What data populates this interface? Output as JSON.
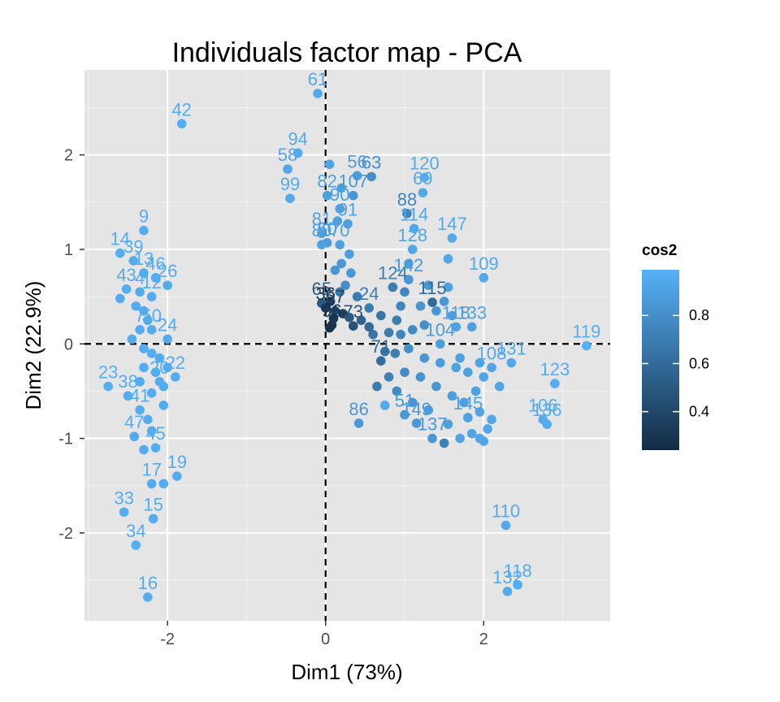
{
  "chart_data": {
    "type": "scatter",
    "title": "Individuals factor map - PCA",
    "xlabel": "Dim1 (73%)",
    "ylabel": "Dim2 (22.9%)",
    "xlim": [
      -3.05,
      3.6
    ],
    "ylim": [
      -2.93,
      2.9
    ],
    "xticks": [
      {
        "v": -2,
        "label": "-2"
      },
      {
        "v": 0,
        "label": "0"
      },
      {
        "v": 2,
        "label": "2"
      }
    ],
    "yticks": [
      {
        "v": -2,
        "label": "-2"
      },
      {
        "v": -1,
        "label": "-1"
      },
      {
        "v": 0,
        "label": "0"
      },
      {
        "v": 1,
        "label": "1"
      },
      {
        "v": 2,
        "label": "2"
      }
    ],
    "grid": true,
    "reference_lines": {
      "x": 0,
      "y": 0,
      "style": "dashed"
    },
    "color_scale": {
      "name": "cos2",
      "min": 0.24,
      "max": 0.99,
      "low_color": "#132b43",
      "high_color": "#56b1f7",
      "ticks": [
        {
          "v": 0.4,
          "label": "0.4"
        },
        {
          "v": 0.6,
          "label": "0.6"
        },
        {
          "v": 0.8,
          "label": "0.8"
        }
      ]
    },
    "legend": "right",
    "points": [
      {
        "label": "61",
        "x": -0.1,
        "y": 2.65,
        "cos2": 0.95
      },
      {
        "label": "42",
        "x": -1.82,
        "y": 2.33,
        "cos2": 0.97
      },
      {
        "label": "94",
        "x": -0.35,
        "y": 2.02,
        "cos2": 0.96
      },
      {
        "label": "58",
        "x": -0.48,
        "y": 1.85,
        "cos2": 0.93
      },
      {
        "label": "99",
        "x": -0.45,
        "y": 1.54,
        "cos2": 0.95
      },
      {
        "label": "82",
        "x": 0.02,
        "y": 1.57,
        "cos2": 0.9
      },
      {
        "label": "107",
        "x": 0.35,
        "y": 1.57,
        "cos2": 0.85
      },
      {
        "label": "56",
        "x": 0.4,
        "y": 1.78,
        "cos2": 0.88
      },
      {
        "label": "63",
        "x": 0.58,
        "y": 1.77,
        "cos2": 0.8
      },
      {
        "label": "120",
        "x": 1.25,
        "y": 1.76,
        "cos2": 0.96
      },
      {
        "label": "69",
        "x": 1.23,
        "y": 1.6,
        "cos2": 0.95
      },
      {
        "label": "88",
        "x": 1.03,
        "y": 1.38,
        "cos2": 0.75
      },
      {
        "label": "114",
        "x": 1.12,
        "y": 1.22,
        "cos2": 0.93
      },
      {
        "label": "90",
        "x": 0.18,
        "y": 1.43,
        "cos2": 0.9
      },
      {
        "label": "91",
        "x": 0.28,
        "y": 1.27,
        "cos2": 0.9
      },
      {
        "label": "81",
        "x": -0.05,
        "y": 1.17,
        "cos2": 0.9
      },
      {
        "label": "60",
        "x": 0.02,
        "y": 1.07,
        "cos2": 0.88
      },
      {
        "label": "70",
        "x": 0.18,
        "y": 1.05,
        "cos2": 0.9
      },
      {
        "label": "80",
        "x": -0.05,
        "y": 1.05,
        "cos2": 0.9
      },
      {
        "label": "147",
        "x": 1.6,
        "y": 1.12,
        "cos2": 0.95
      },
      {
        "label": "128",
        "x": 1.1,
        "y": 1.0,
        "cos2": 0.93
      },
      {
        "label": "9",
        "x": -2.3,
        "y": 1.2,
        "cos2": 0.96
      },
      {
        "label": "14",
        "x": -2.6,
        "y": 0.96,
        "cos2": 0.97
      },
      {
        "label": "39",
        "x": -2.43,
        "y": 0.88,
        "cos2": 0.96
      },
      {
        "label": "13",
        "x": -2.3,
        "y": 0.75,
        "cos2": 0.96
      },
      {
        "label": "46",
        "x": -2.15,
        "y": 0.7,
        "cos2": 0.96
      },
      {
        "label": "26",
        "x": -2.0,
        "y": 0.62,
        "cos2": 0.96
      },
      {
        "label": "43",
        "x": -2.52,
        "y": 0.58,
        "cos2": 0.96
      },
      {
        "label": "4",
        "x": -2.35,
        "y": 0.55,
        "cos2": 0.96
      },
      {
        "label": "12",
        "x": -2.2,
        "y": 0.5,
        "cos2": 0.96
      },
      {
        "label": "109",
        "x": 2.0,
        "y": 0.7,
        "cos2": 0.95
      },
      {
        "label": "124",
        "x": 0.85,
        "y": 0.6,
        "cos2": 0.7
      },
      {
        "label": "142",
        "x": 1.05,
        "y": 0.68,
        "cos2": 0.85
      },
      {
        "label": "115",
        "x": 1.35,
        "y": 0.44,
        "cos2": 0.6
      },
      {
        "label": "65",
        "x": -0.05,
        "y": 0.43,
        "cos2": 0.5
      },
      {
        "label": "36",
        "x": 0.0,
        "y": 0.38,
        "cos2": 0.32
      },
      {
        "label": "57",
        "x": 0.12,
        "y": 0.35,
        "cos2": 0.4
      },
      {
        "label": "24",
        "x": 0.55,
        "y": 0.38,
        "cos2": 0.7
      },
      {
        "label": "96",
        "x": 0.08,
        "y": 0.2,
        "cos2": 0.3
      },
      {
        "label": "73",
        "x": 0.35,
        "y": 0.19,
        "cos2": 0.45
      },
      {
        "label": "7",
        "x": -2.35,
        "y": 0.15,
        "cos2": 0.96
      },
      {
        "label": "50",
        "x": -2.2,
        "y": 0.15,
        "cos2": 0.96
      },
      {
        "label": "24",
        "x": -2.0,
        "y": 0.05,
        "cos2": 0.96
      },
      {
        "label": "118",
        "x": 1.65,
        "y": 0.18,
        "cos2": 0.9
      },
      {
        "label": "133",
        "x": 1.85,
        "y": 0.18,
        "cos2": 0.9
      },
      {
        "label": "104",
        "x": 1.45,
        "y": 0.0,
        "cos2": 0.88
      },
      {
        "label": "119",
        "x": 3.3,
        "y": -0.02,
        "cos2": 0.98
      },
      {
        "label": "131",
        "x": 2.35,
        "y": -0.2,
        "cos2": 0.94
      },
      {
        "label": "108",
        "x": 2.1,
        "y": -0.25,
        "cos2": 0.93
      },
      {
        "label": "123",
        "x": 2.9,
        "y": -0.42,
        "cos2": 0.97
      },
      {
        "label": "71",
        "x": 0.7,
        "y": -0.18,
        "cos2": 0.6
      },
      {
        "label": "23",
        "x": -2.75,
        "y": -0.45,
        "cos2": 0.97
      },
      {
        "label": "38",
        "x": -2.5,
        "y": -0.55,
        "cos2": 0.97
      },
      {
        "label": "20",
        "x": -2.1,
        "y": -0.4,
        "cos2": 0.96
      },
      {
        "label": "22",
        "x": -1.9,
        "y": -0.35,
        "cos2": 0.96
      },
      {
        "label": "86",
        "x": 0.42,
        "y": -0.84,
        "cos2": 0.85
      },
      {
        "label": "51",
        "x": 1.0,
        "y": -0.75,
        "cos2": 0.85
      },
      {
        "label": "149",
        "x": 1.15,
        "y": -0.84,
        "cos2": 0.85
      },
      {
        "label": "137",
        "x": 1.35,
        "y": -1.0,
        "cos2": 0.85
      },
      {
        "label": "106",
        "x": 2.75,
        "y": -0.8,
        "cos2": 0.96
      },
      {
        "label": "136",
        "x": 2.8,
        "y": -0.85,
        "cos2": 0.96
      },
      {
        "label": "145",
        "x": 1.8,
        "y": -0.78,
        "cos2": 0.9
      },
      {
        "label": "41",
        "x": -2.35,
        "y": -0.7,
        "cos2": 0.96
      },
      {
        "label": "47",
        "x": -2.42,
        "y": -0.98,
        "cos2": 0.96
      },
      {
        "label": "45",
        "x": -2.15,
        "y": -1.1,
        "cos2": 0.96
      },
      {
        "label": "19",
        "x": -1.88,
        "y": -1.4,
        "cos2": 0.96
      },
      {
        "label": "17",
        "x": -2.2,
        "y": -1.48,
        "cos2": 0.96
      },
      {
        "label": "15",
        "x": -2.18,
        "y": -1.85,
        "cos2": 0.97
      },
      {
        "label": "33",
        "x": -2.55,
        "y": -1.78,
        "cos2": 0.97
      },
      {
        "label": "34",
        "x": -2.4,
        "y": -2.13,
        "cos2": 0.97
      },
      {
        "label": "110",
        "x": 2.28,
        "y": -1.92,
        "cos2": 0.95
      },
      {
        "label": "118",
        "x": 2.43,
        "y": -2.55,
        "cos2": 0.96
      },
      {
        "label": "132",
        "x": 2.3,
        "y": -2.62,
        "cos2": 0.96
      },
      {
        "label": "16",
        "x": -2.25,
        "y": -2.68,
        "cos2": 0.97
      },
      {
        "label": "",
        "x": -2.6,
        "y": 0.48,
        "cos2": 0.96
      },
      {
        "label": "",
        "x": -2.4,
        "y": 0.4,
        "cos2": 0.96
      },
      {
        "label": "",
        "x": -2.3,
        "y": 0.35,
        "cos2": 0.96
      },
      {
        "label": "",
        "x": -2.25,
        "y": 0.25,
        "cos2": 0.96
      },
      {
        "label": "",
        "x": -2.45,
        "y": 0.05,
        "cos2": 0.96
      },
      {
        "label": "",
        "x": -2.3,
        "y": -0.05,
        "cos2": 0.96
      },
      {
        "label": "",
        "x": -2.2,
        "y": -0.1,
        "cos2": 0.96
      },
      {
        "label": "",
        "x": -2.1,
        "y": -0.15,
        "cos2": 0.96
      },
      {
        "label": "",
        "x": -2.3,
        "y": -0.25,
        "cos2": 0.96
      },
      {
        "label": "",
        "x": -2.15,
        "y": -0.3,
        "cos2": 0.96
      },
      {
        "label": "",
        "x": -2.05,
        "y": -0.45,
        "cos2": 0.96
      },
      {
        "label": "",
        "x": -2.2,
        "y": -0.52,
        "cos2": 0.96
      },
      {
        "label": "",
        "x": -2.05,
        "y": -0.65,
        "cos2": 0.96
      },
      {
        "label": "",
        "x": -2.25,
        "y": -0.8,
        "cos2": 0.96
      },
      {
        "label": "",
        "x": -2.2,
        "y": -0.92,
        "cos2": 0.96
      },
      {
        "label": "",
        "x": -2.3,
        "y": -1.12,
        "cos2": 0.96
      },
      {
        "label": "",
        "x": -2.05,
        "y": -1.48,
        "cos2": 0.96
      },
      {
        "label": "",
        "x": -2.35,
        "y": -0.4,
        "cos2": 0.96
      },
      {
        "label": "",
        "x": -2.0,
        "y": -0.25,
        "cos2": 0.96
      },
      {
        "label": "",
        "x": 0.05,
        "y": 1.9,
        "cos2": 0.92
      },
      {
        "label": "",
        "x": 0.2,
        "y": 1.65,
        "cos2": 0.9
      },
      {
        "label": "",
        "x": 0.3,
        "y": 0.95,
        "cos2": 0.88
      },
      {
        "label": "",
        "x": 0.2,
        "y": 0.85,
        "cos2": 0.85
      },
      {
        "label": "",
        "x": 0.12,
        "y": 0.78,
        "cos2": 0.85
      },
      {
        "label": "",
        "x": 0.32,
        "y": 0.75,
        "cos2": 0.85
      },
      {
        "label": "",
        "x": 0.25,
        "y": 0.62,
        "cos2": 0.8
      },
      {
        "label": "",
        "x": 0.18,
        "y": 0.55,
        "cos2": 0.7
      },
      {
        "label": "",
        "x": 0.4,
        "y": 0.5,
        "cos2": 0.7
      },
      {
        "label": "",
        "x": 0.06,
        "y": 0.45,
        "cos2": 0.3
      },
      {
        "label": "",
        "x": 0.22,
        "y": 0.32,
        "cos2": 0.35
      },
      {
        "label": "",
        "x": 0.1,
        "y": 0.27,
        "cos2": 0.3
      },
      {
        "label": "",
        "x": 0.05,
        "y": 0.17,
        "cos2": 0.28
      },
      {
        "label": "",
        "x": 0.3,
        "y": 0.28,
        "cos2": 0.5
      },
      {
        "label": "",
        "x": 0.45,
        "y": 0.25,
        "cos2": 0.55
      },
      {
        "label": "",
        "x": 0.55,
        "y": 0.18,
        "cos2": 0.6
      },
      {
        "label": "",
        "x": 0.6,
        "y": 0.1,
        "cos2": 0.65
      },
      {
        "label": "",
        "x": 0.8,
        "y": 0.12,
        "cos2": 0.7
      },
      {
        "label": "",
        "x": 0.95,
        "y": 0.1,
        "cos2": 0.75
      },
      {
        "label": "",
        "x": 1.1,
        "y": 0.15,
        "cos2": 0.78
      },
      {
        "label": "",
        "x": 1.25,
        "y": 0.2,
        "cos2": 0.8
      },
      {
        "label": "",
        "x": 1.2,
        "y": 0.4,
        "cos2": 0.82
      },
      {
        "label": "",
        "x": 0.95,
        "y": 0.4,
        "cos2": 0.75
      },
      {
        "label": "",
        "x": 1.5,
        "y": 0.45,
        "cos2": 0.85
      },
      {
        "label": "",
        "x": 1.0,
        "y": 0.55,
        "cos2": 0.75
      },
      {
        "label": "",
        "x": 1.3,
        "y": 0.62,
        "cos2": 0.85
      },
      {
        "label": "",
        "x": 1.55,
        "y": 0.9,
        "cos2": 0.93
      },
      {
        "label": "",
        "x": 1.55,
        "y": 0.6,
        "cos2": 0.9
      },
      {
        "label": "",
        "x": 1.4,
        "y": 0.35,
        "cos2": 0.85
      },
      {
        "label": "",
        "x": 0.9,
        "y": 0.25,
        "cos2": 0.7
      },
      {
        "label": "",
        "x": 0.7,
        "y": 0.3,
        "cos2": 0.65
      },
      {
        "label": "",
        "x": 1.6,
        "y": 0.3,
        "cos2": 0.88
      },
      {
        "label": "",
        "x": 0.15,
        "y": 1.3,
        "cos2": 0.9
      },
      {
        "label": "",
        "x": 1.05,
        "y": 0.85,
        "cos2": 0.9
      },
      {
        "label": "",
        "x": 0.75,
        "y": -0.08,
        "cos2": 0.65
      },
      {
        "label": "",
        "x": 0.88,
        "y": -0.1,
        "cos2": 0.7
      },
      {
        "label": "",
        "x": 1.05,
        "y": -0.05,
        "cos2": 0.8
      },
      {
        "label": "",
        "x": 1.25,
        "y": -0.15,
        "cos2": 0.85
      },
      {
        "label": "",
        "x": 1.45,
        "y": -0.2,
        "cos2": 0.88
      },
      {
        "label": "",
        "x": 1.65,
        "y": -0.25,
        "cos2": 0.9
      },
      {
        "label": "",
        "x": 1.8,
        "y": -0.3,
        "cos2": 0.9
      },
      {
        "label": "",
        "x": 2.0,
        "y": -0.35,
        "cos2": 0.92
      },
      {
        "label": "",
        "x": 2.2,
        "y": -0.45,
        "cos2": 0.93
      },
      {
        "label": "",
        "x": 1.9,
        "y": -0.5,
        "cos2": 0.9
      },
      {
        "label": "",
        "x": 1.6,
        "y": -0.55,
        "cos2": 0.88
      },
      {
        "label": "",
        "x": 1.4,
        "y": -0.45,
        "cos2": 0.85
      },
      {
        "label": "",
        "x": 1.2,
        "y": -0.35,
        "cos2": 0.82
      },
      {
        "label": "",
        "x": 1.0,
        "y": -0.3,
        "cos2": 0.78
      },
      {
        "label": "",
        "x": 0.8,
        "y": -0.35,
        "cos2": 0.72
      },
      {
        "label": "",
        "x": 0.65,
        "y": -0.45,
        "cos2": 0.7
      },
      {
        "label": "",
        "x": 0.75,
        "y": -0.65,
        "cos2": 0.95
      },
      {
        "label": "",
        "x": 0.9,
        "y": -0.5,
        "cos2": 0.78
      },
      {
        "label": "",
        "x": 1.1,
        "y": -0.62,
        "cos2": 0.85
      },
      {
        "label": "",
        "x": 1.3,
        "y": -0.7,
        "cos2": 0.88
      },
      {
        "label": "",
        "x": 1.55,
        "y": -0.85,
        "cos2": 0.9
      },
      {
        "label": "",
        "x": 1.75,
        "y": -0.62,
        "cos2": 0.9
      },
      {
        "label": "",
        "x": 1.95,
        "y": -0.72,
        "cos2": 0.92
      },
      {
        "label": "",
        "x": 2.05,
        "y": -0.9,
        "cos2": 0.93
      },
      {
        "label": "",
        "x": 1.85,
        "y": -0.95,
        "cos2": 0.92
      },
      {
        "label": "",
        "x": 1.7,
        "y": -1.0,
        "cos2": 0.92
      },
      {
        "label": "",
        "x": 1.5,
        "y": -1.05,
        "cos2": 0.72
      },
      {
        "label": "",
        "x": 1.95,
        "y": -1.0,
        "cos2": 0.93
      },
      {
        "label": "",
        "x": 2.0,
        "y": -1.03,
        "cos2": 0.93
      },
      {
        "label": "",
        "x": 2.1,
        "y": -0.8,
        "cos2": 0.93
      },
      {
        "label": "",
        "x": 1.95,
        "y": -0.2,
        "cos2": 0.92
      },
      {
        "label": "",
        "x": 1.7,
        "y": -0.15,
        "cos2": 0.9
      }
    ]
  }
}
